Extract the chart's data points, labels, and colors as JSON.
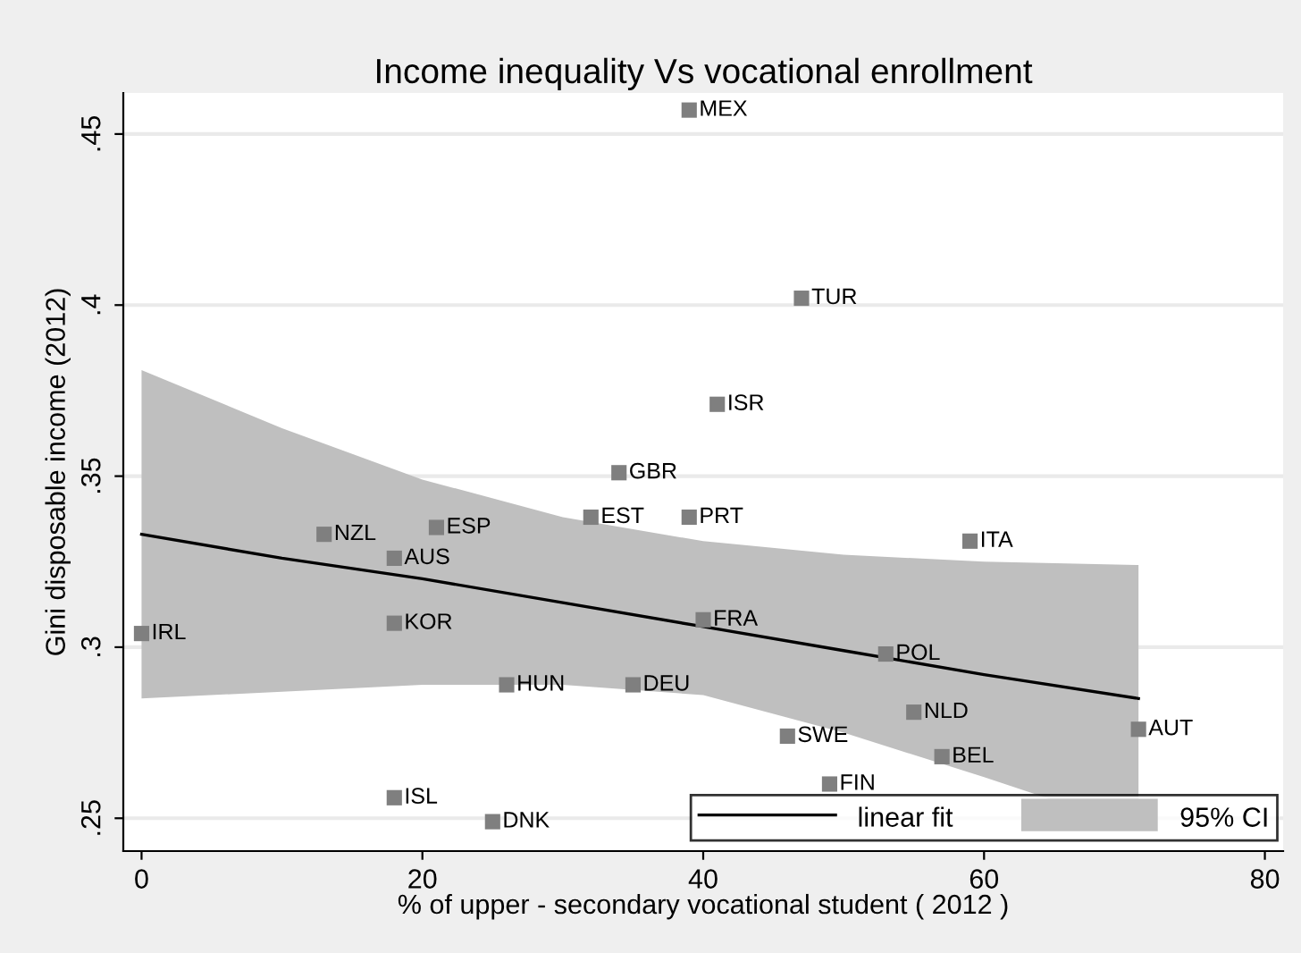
{
  "chart_data": {
    "type": "scatter",
    "title": "Income inequality Vs vocational enrollment",
    "xlabel": "% of upper - secondary vocational student ( 2012 )",
    "ylabel": "Gini disposable income (2012)",
    "xlim": [
      -1.3,
      81.3
    ],
    "ylim": [
      0.2404,
      0.462
    ],
    "xticks": [
      0,
      20,
      40,
      60,
      80
    ],
    "yticks": [
      {
        "value": 0.25,
        "label": ".25"
      },
      {
        "value": 0.3,
        "label": ".3"
      },
      {
        "value": 0.35,
        "label": ".35"
      },
      {
        "value": 0.4,
        "label": ".4"
      },
      {
        "value": 0.45,
        "label": ".45"
      }
    ],
    "grid": "y",
    "legend": "bottom right",
    "series": [
      {
        "type": "line",
        "name": "linear fit",
        "color": "#000000",
        "x": [
          0,
          10,
          20,
          30,
          40,
          50,
          60,
          71
        ],
        "values": [
          0.333,
          0.326,
          0.32,
          0.313,
          0.306,
          0.299,
          0.292,
          0.285
        ],
        "upper": [
          0.381,
          0.364,
          0.349,
          0.338,
          0.331,
          0.327,
          0.325,
          0.324
        ],
        "lower": [
          0.285,
          0.287,
          0.289,
          0.289,
          0.286,
          0.275,
          0.262,
          0.247
        ]
      },
      {
        "marker": "square",
        "color": "#7f7f7f",
        "x": [
          39,
          47,
          41,
          34,
          32,
          39,
          13,
          21,
          18,
          0,
          18,
          26,
          35,
          18,
          25,
          59,
          40,
          53,
          55,
          71,
          46,
          57,
          49
        ],
        "values": [
          0.457,
          0.402,
          0.371,
          0.351,
          0.338,
          0.338,
          0.333,
          0.335,
          0.326,
          0.304,
          0.307,
          0.289,
          0.289,
          0.256,
          0.249,
          0.331,
          0.308,
          0.298,
          0.281,
          0.276,
          0.274,
          0.268,
          0.26
        ]
      }
    ],
    "annotations": [
      "95% CI",
      {
        "text": "MEX",
        "x": 39,
        "y": 0.457
      },
      {
        "text": "TUR",
        "x": 47,
        "y": 0.402
      },
      {
        "text": "ISR",
        "x": 41,
        "y": 0.371
      },
      {
        "text": "GBR",
        "x": 34,
        "y": 0.351
      },
      {
        "text": "EST",
        "x": 32,
        "y": 0.338
      },
      {
        "text": "PRT",
        "x": 39,
        "y": 0.338
      },
      {
        "text": "NZL",
        "x": 13,
        "y": 0.333
      },
      {
        "text": "ESP",
        "x": 21,
        "y": 0.335
      },
      {
        "text": "AUS",
        "x": 18,
        "y": 0.326
      },
      {
        "text": "IRL",
        "x": 0,
        "y": 0.304
      },
      {
        "text": "KOR",
        "x": 18,
        "y": 0.307
      },
      {
        "text": "HUN",
        "x": 26,
        "y": 0.289
      },
      {
        "text": "DEU",
        "x": 35,
        "y": 0.289
      },
      {
        "text": "ISL",
        "x": 18,
        "y": 0.256
      },
      {
        "text": "DNK",
        "x": 25,
        "y": 0.249
      },
      {
        "text": "ITA",
        "x": 59,
        "y": 0.331
      },
      {
        "text": "FRA",
        "x": 40,
        "y": 0.308
      },
      {
        "text": "POL",
        "x": 53,
        "y": 0.298
      },
      {
        "text": "NLD",
        "x": 55,
        "y": 0.281
      },
      {
        "text": "AUT",
        "x": 71,
        "y": 0.276
      },
      {
        "text": "SWE",
        "x": 46,
        "y": 0.274
      },
      {
        "text": "BEL",
        "x": 57,
        "y": 0.268
      },
      {
        "text": "FIN",
        "x": 49,
        "y": 0.26
      }
    ]
  }
}
